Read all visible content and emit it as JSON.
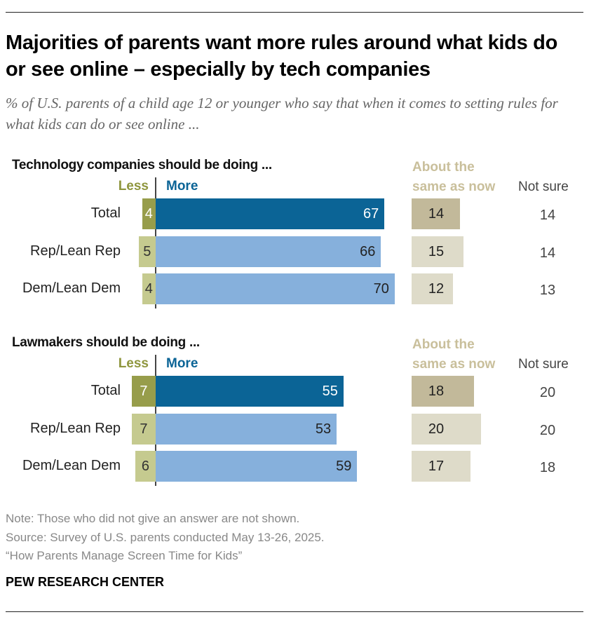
{
  "title": "Majorities of parents want more rules around what kids do or see online – especially by tech companies",
  "subtitle": "% of U.S. parents of a child age 12 or younger who say that when it comes to setting rules for what kids can do or see online ...",
  "chart_data": {
    "type": "bar",
    "columns": {
      "less": "Less",
      "more": "More",
      "same": "About the same as now",
      "not_sure": "Not sure"
    },
    "categories": [
      "Total",
      "Rep/Lean Rep",
      "Dem/Lean Dem"
    ],
    "panels": [
      {
        "heading": "Technology companies should be doing ...",
        "same_line1": "About the",
        "same_line2": "same as now",
        "series": [
          {
            "name": "Less",
            "values": [
              4,
              5,
              4
            ]
          },
          {
            "name": "More",
            "values": [
              67,
              66,
              70
            ]
          },
          {
            "name": "About the same as now",
            "values": [
              14,
              15,
              12
            ]
          },
          {
            "name": "Not sure",
            "values": [
              14,
              14,
              13
            ]
          }
        ]
      },
      {
        "heading": "Lawmakers should be doing ...",
        "same_line1": "About the",
        "same_line2": "same as now",
        "series": [
          {
            "name": "Less",
            "values": [
              7,
              7,
              6
            ]
          },
          {
            "name": "More",
            "values": [
              55,
              53,
              59
            ]
          },
          {
            "name": "About the same as now",
            "values": [
              18,
              20,
              17
            ]
          },
          {
            "name": "Not sure",
            "values": [
              20,
              20,
              18
            ]
          }
        ]
      }
    ],
    "colors": {
      "more_total": "#0b6496",
      "more_party": "#86b0dc",
      "less_total": "#979d4b",
      "less_party": "#c5ca8f",
      "same_total": "#c2b99a",
      "same_party": "#dedbc9"
    }
  },
  "notes": {
    "note": "Note: Those who did not give an answer are not shown.",
    "source": "Source: Survey of U.S. parents conducted May 13-26, 2025.",
    "report": "“How Parents Manage Screen Time for Kids”"
  },
  "brand": "PEW RESEARCH CENTER"
}
